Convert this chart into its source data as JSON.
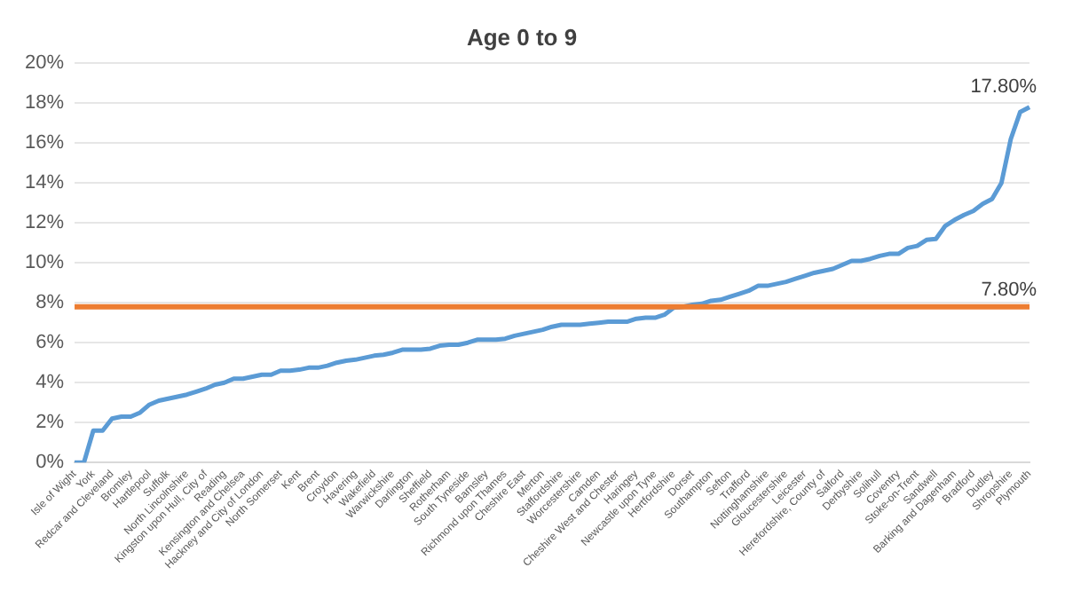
{
  "chart_data": {
    "type": "line",
    "title": "Age 0 to 9",
    "categories": [
      "Isle of Wight",
      null,
      "York",
      null,
      "Redcar and Cleveland",
      null,
      "Bromley",
      null,
      "Hartlepool",
      null,
      "Suffolk",
      null,
      "North Lincolnshire",
      null,
      "Kingston upon Hull, City of",
      null,
      "Reading",
      null,
      "Kensington and Chelsea",
      null,
      "Hackney and City of London",
      null,
      "North Somerset",
      null,
      "Kent",
      null,
      "Brent",
      null,
      "Croydon",
      null,
      "Havering",
      null,
      "Wakefield",
      null,
      "Warwickshire",
      null,
      "Darlington",
      null,
      "Sheffield",
      null,
      "Rotherham",
      null,
      "South Tyneside",
      null,
      "Barnsley",
      null,
      "Richmond upon Thames",
      null,
      "Cheshire East",
      null,
      "Merton",
      null,
      "Staffordshire",
      null,
      "Worcestershire",
      null,
      "Camden",
      null,
      "Cheshire West and Chester",
      null,
      "Haringey",
      null,
      "Newcastle upon Tyne",
      null,
      "Hertfordshire",
      null,
      "Dorset",
      null,
      "Southampton",
      null,
      "Sefton",
      null,
      "Trafford",
      null,
      "Nottinghamshire",
      null,
      "Gloucestershire",
      null,
      "Leicester",
      null,
      "Herefordshire, County of",
      null,
      "Salford",
      null,
      "Derbyshire",
      null,
      "Solihull",
      null,
      "Coventry",
      null,
      "Stoke-on-Trent",
      null,
      "Sandwell",
      null,
      "Barking and Dagenham",
      null,
      "Bradford",
      null,
      "Dudley",
      null,
      "Shropshire",
      null,
      "Plymouth"
    ],
    "series": [
      {
        "color": "#5b9bd5",
        "values": [
          0,
          0,
          1.6,
          1.6,
          2.2,
          2.3,
          2.3,
          2.5,
          2.9,
          3.1,
          3.2,
          3.3,
          3.4,
          3.55,
          3.7,
          3.9,
          4.0,
          4.2,
          4.2,
          4.3,
          4.4,
          4.4,
          4.6,
          4.6,
          4.65,
          4.75,
          4.75,
          4.85,
          5.0,
          5.1,
          5.15,
          5.25,
          5.35,
          5.4,
          5.5,
          5.65,
          5.65,
          5.65,
          5.7,
          5.85,
          5.9,
          5.9,
          6.0,
          6.15,
          6.15,
          6.15,
          6.2,
          6.35,
          6.45,
          6.55,
          6.65,
          6.8,
          6.9,
          6.9,
          6.9,
          6.95,
          7.0,
          7.05,
          7.05,
          7.05,
          7.2,
          7.25,
          7.25,
          7.4,
          7.75,
          7.8,
          7.9,
          7.95,
          8.1,
          8.15,
          8.3,
          8.45,
          8.6,
          8.85,
          8.85,
          8.95,
          9.05,
          9.2,
          9.35,
          9.5,
          9.6,
          9.7,
          9.9,
          10.1,
          10.1,
          10.2,
          10.35,
          10.45,
          10.45,
          10.75,
          10.85,
          11.15,
          11.2,
          11.85,
          12.15,
          12.4,
          12.6,
          12.95,
          13.2,
          14.0,
          16.2,
          17.55,
          17.8
        ],
        "value_labels": [
          null,
          null,
          null,
          null,
          null,
          null,
          null,
          null,
          null,
          null,
          null,
          null,
          null,
          null,
          null,
          null,
          null,
          null,
          null,
          null,
          null,
          null,
          null,
          null,
          null,
          null,
          null,
          null,
          null,
          null,
          null,
          null,
          null,
          null,
          null,
          null,
          null,
          null,
          null,
          null,
          null,
          null,
          null,
          null,
          null,
          null,
          null,
          null,
          null,
          null,
          null,
          null,
          null,
          null,
          null,
          null,
          null,
          null,
          null,
          null,
          null,
          null,
          null,
          null,
          null,
          null,
          null,
          null,
          null,
          null,
          null,
          null,
          null,
          null,
          null,
          null,
          null,
          null,
          null,
          null,
          null,
          null,
          null,
          null,
          null,
          null,
          null,
          null,
          null,
          null,
          null,
          null,
          null,
          null,
          null,
          null,
          null,
          null,
          null,
          null,
          null,
          null,
          "17.80%"
        ]
      }
    ],
    "ylim": [
      0,
      20
    ],
    "yticks": [
      {
        "value": 0,
        "label": "0%"
      },
      {
        "value": 2,
        "label": "2%"
      },
      {
        "value": 4,
        "label": "4%"
      },
      {
        "value": 6,
        "label": "6%"
      },
      {
        "value": 8,
        "label": "8%"
      },
      {
        "value": 10,
        "label": "10%"
      },
      {
        "value": 12,
        "label": "12%"
      },
      {
        "value": 14,
        "label": "14%"
      },
      {
        "value": 16,
        "label": "16%"
      },
      {
        "value": 18,
        "label": "18%"
      },
      {
        "value": 20,
        "label": "20%"
      }
    ],
    "grid": "y",
    "marker": "none",
    "line_style": "solid",
    "ref_lines": [
      {
        "axis": "y",
        "value": 7.8,
        "label": "7.80%",
        "color": "#ed7d31"
      }
    ]
  }
}
